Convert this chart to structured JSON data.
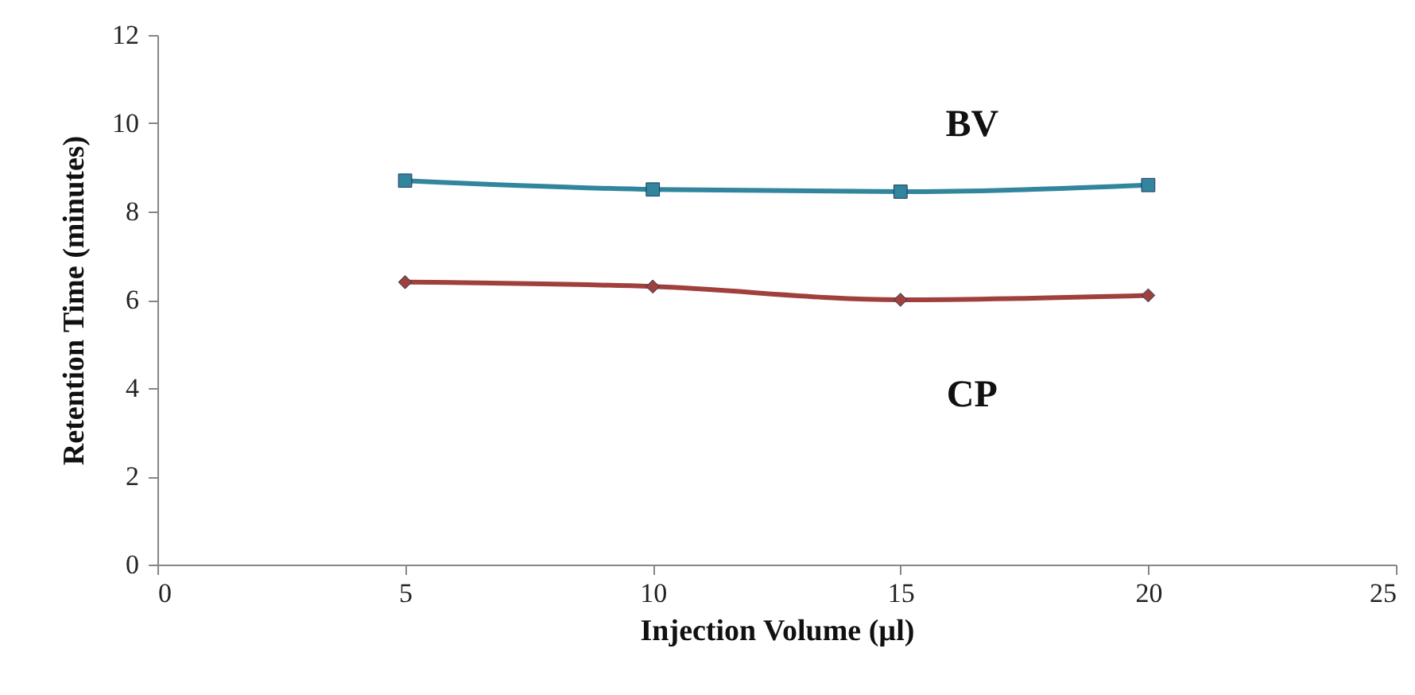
{
  "chart_data": {
    "type": "line",
    "xlabel": "Injection Volume (µl)",
    "ylabel": "Retention Time (minutes)",
    "x": [
      5,
      10,
      15,
      20
    ],
    "series": [
      {
        "name": "BV",
        "color": "#31859c",
        "marker": "square",
        "values": [
          8.7,
          8.5,
          8.45,
          8.6
        ]
      },
      {
        "name": "CP",
        "color": "#a0403c",
        "marker": "diamond",
        "values": [
          6.4,
          6.3,
          6.0,
          6.1
        ]
      }
    ],
    "xlim": [
      0,
      25
    ],
    "xticks": [
      0,
      5,
      10,
      15,
      20,
      25
    ],
    "ylim": [
      0,
      12
    ],
    "yticks": [
      0,
      2,
      4,
      6,
      8,
      10,
      12
    ],
    "grid": false,
    "legend": false
  }
}
